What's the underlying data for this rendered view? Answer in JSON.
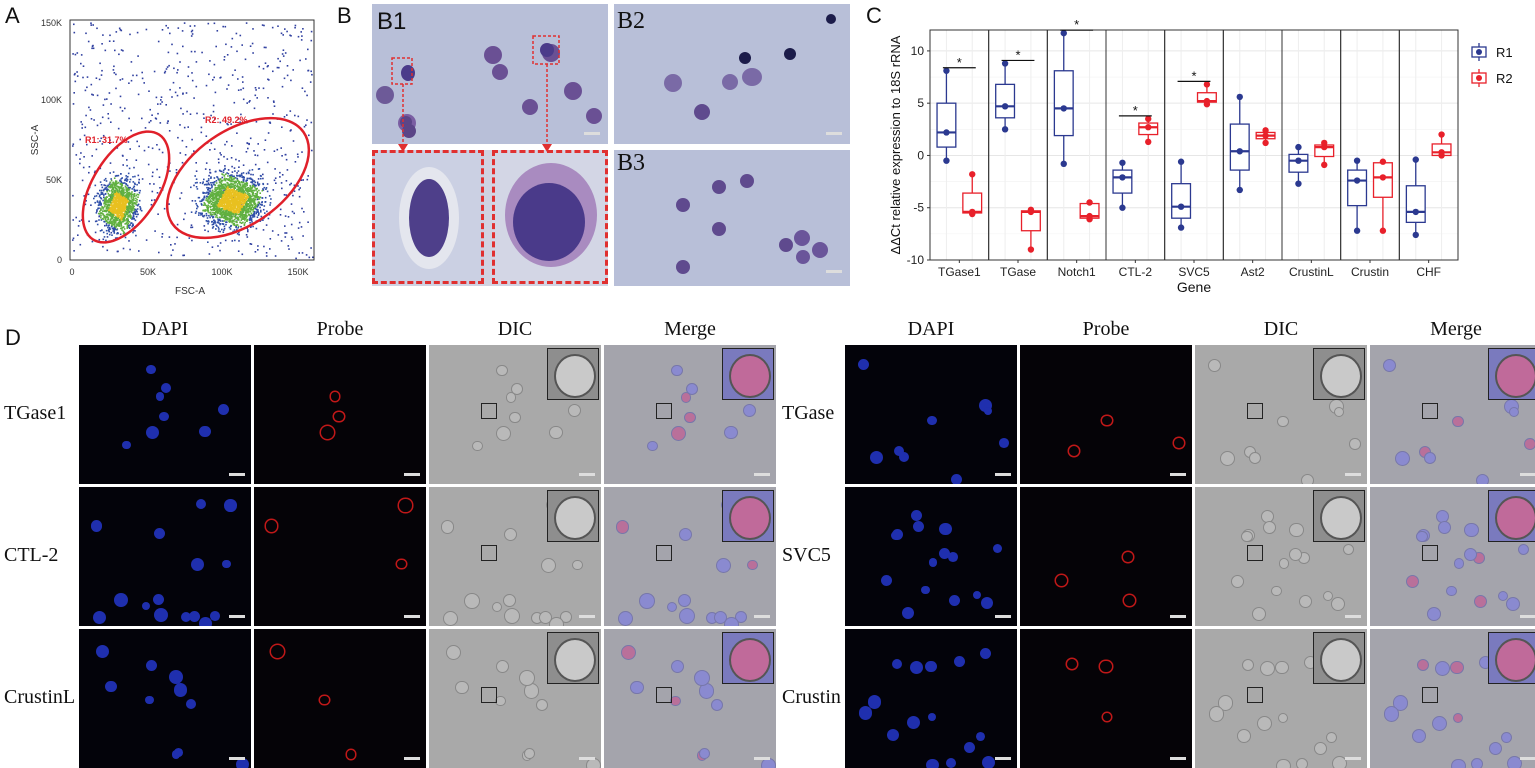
{
  "panels": {
    "A": "A",
    "B": "B",
    "C": "C",
    "D": "D"
  },
  "panel_a": {
    "xlabel": "FSC-A",
    "ylabel": "SSC-A",
    "x_ticks": [
      "0",
      "50K",
      "100K",
      "150K"
    ],
    "y_ticks": [
      "0",
      "50K",
      "100K",
      "150K"
    ],
    "gates": [
      {
        "label": "R1: 31.7%"
      },
      {
        "label": "R2: 49.2%"
      }
    ],
    "gate_color": "#e0202a"
  },
  "panel_b": {
    "labels": [
      "B1",
      "B2",
      "B3"
    ],
    "zoom_color": "#e03030"
  },
  "chart_data": {
    "type": "box",
    "xlabel": "Gene",
    "ylabel": "ΔΔCt relative expression to 18S rRNA",
    "ylim": [
      -10,
      12
    ],
    "y_ticks": [
      -10,
      -5,
      0,
      5,
      10
    ],
    "legend_position": "top-right",
    "categories": [
      "TGase1",
      "TGase",
      "Notch1",
      "CTL-2",
      "SVC5",
      "Ast2",
      "CrustinL",
      "Crustin",
      "CHF"
    ],
    "significance": [
      "*",
      "*",
      "*",
      "*",
      "*",
      "",
      "",
      "",
      ""
    ],
    "series": [
      {
        "name": "R1",
        "color": "#2b3990",
        "boxes": [
          {
            "min": -0.5,
            "q1": 0.8,
            "median": 2.2,
            "q3": 5,
            "max": 8.1,
            "points": [
              8.1,
              2.2,
              -0.5
            ]
          },
          {
            "min": 2.5,
            "q1": 3.6,
            "median": 4.7,
            "q3": 6.8,
            "max": 8.8,
            "points": [
              8.8,
              4.7,
              2.5
            ]
          },
          {
            "min": -0.8,
            "q1": 1.9,
            "median": 4.5,
            "q3": 8.1,
            "max": 11.7,
            "points": [
              11.7,
              4.5,
              -0.8
            ]
          },
          {
            "min": -5,
            "q1": -3.6,
            "median": -2.1,
            "q3": -1.4,
            "max": -0.7,
            "points": [
              -0.7,
              -2.1,
              -5
            ]
          },
          {
            "min": -6.9,
            "q1": -6,
            "median": -4.9,
            "q3": -2.7,
            "max": -0.6,
            "points": [
              -0.6,
              -4.9,
              -6.9
            ]
          },
          {
            "min": -3.3,
            "q1": -1.4,
            "median": 0.4,
            "q3": 3,
            "max": 5.6,
            "points": [
              5.6,
              0.4,
              -3.3
            ]
          },
          {
            "min": -2.7,
            "q1": -1.6,
            "median": -0.5,
            "q3": 0.1,
            "max": 0.8,
            "points": [
              0.8,
              -0.5,
              -2.7
            ]
          },
          {
            "min": -7.2,
            "q1": -4.8,
            "median": -2.4,
            "q3": -1.4,
            "max": -0.5,
            "points": [
              -0.5,
              -2.4,
              -7.2
            ]
          },
          {
            "min": -7.6,
            "q1": -6.4,
            "median": -5.4,
            "q3": -2.9,
            "max": -0.4,
            "points": [
              -0.4,
              -5.4,
              -7.6
            ]
          }
        ]
      },
      {
        "name": "R2",
        "color": "#e8202a",
        "boxes": [
          {
            "min": -5.6,
            "q1": -5.5,
            "median": -5.4,
            "q3": -3.6,
            "max": -1.8,
            "points": [
              -1.8,
              -5.4,
              -5.6
            ]
          },
          {
            "min": -9,
            "q1": -7.2,
            "median": -5.4,
            "q3": -5.3,
            "max": -5.2,
            "points": [
              -5.2,
              -5.4,
              -9
            ]
          },
          {
            "min": -6.1,
            "q1": -6,
            "median": -5.8,
            "q3": -4.6,
            "max": -4.5,
            "points": [
              -4.5,
              -5.8,
              -6.1
            ]
          },
          {
            "min": 1.3,
            "q1": 2,
            "median": 2.7,
            "q3": 3.1,
            "max": 3.5,
            "points": [
              3.5,
              2.7,
              1.3
            ]
          },
          {
            "min": 4.9,
            "q1": 5.1,
            "median": 5.2,
            "q3": 6,
            "max": 6.8,
            "points": [
              6.8,
              5.2,
              4.9
            ]
          },
          {
            "min": 1.2,
            "q1": 1.6,
            "median": 1.9,
            "q3": 2.2,
            "max": 2.4,
            "points": [
              2.4,
              1.9,
              1.2
            ]
          },
          {
            "min": -0.9,
            "q1": -0.1,
            "median": 0.8,
            "q3": 1,
            "max": 1.2,
            "points": [
              1.2,
              0.8,
              -0.9
            ]
          },
          {
            "min": -7.2,
            "q1": -4,
            "median": -2.1,
            "q3": -0.7,
            "max": -0.6,
            "points": [
              -0.6,
              -2.1,
              -7.2
            ]
          },
          {
            "min": 0,
            "q1": 0,
            "median": 0.3,
            "q3": 1.1,
            "max": 2,
            "points": [
              2,
              0.3,
              0
            ]
          }
        ]
      }
    ]
  },
  "panel_d": {
    "columns": [
      "DAPI",
      "Probe",
      "DIC",
      "Merge"
    ],
    "left_rows": [
      "TGase1",
      "CTL-2",
      "CrustinL"
    ],
    "right_rows": [
      "TGase",
      "SVC5",
      "Crustin"
    ]
  }
}
